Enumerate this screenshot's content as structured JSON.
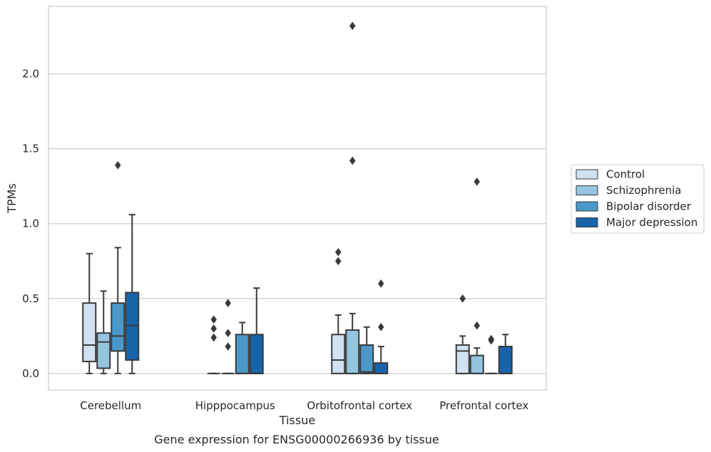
{
  "caption": "Gene expression for ENSG00000266936 by tissue",
  "chart_data": {
    "type": "box",
    "title": "",
    "xlabel": "Tissue",
    "ylabel": "TPMs",
    "ylim": [
      -0.11,
      2.45
    ],
    "yticks": [
      0.0,
      0.5,
      1.0,
      1.5,
      2.0
    ],
    "ytick_labels": [
      "0.0",
      "0.5",
      "1.0",
      "1.5",
      "2.0"
    ],
    "grid": "horizontal",
    "legend_position": "right",
    "categories": [
      "Cerebellum",
      "Hipppocampus",
      "Orbitofrontal cortex",
      "Prefrontal cortex"
    ],
    "series": [
      {
        "name": "Control",
        "color": "#d0e1f2",
        "boxes": [
          {
            "whislo": 0.0,
            "q1": 0.08,
            "med": 0.19,
            "q3": 0.47,
            "whishi": 0.8,
            "fliers": []
          },
          {
            "whislo": 0.0,
            "q1": 0.0,
            "med": 0.0,
            "q3": 0.0,
            "whishi": 0.0,
            "fliers": [
              0.24,
              0.3,
              0.36
            ]
          },
          {
            "whislo": 0.0,
            "q1": 0.0,
            "med": 0.09,
            "q3": 0.26,
            "whishi": 0.39,
            "fliers": [
              0.75,
              0.81
            ]
          },
          {
            "whislo": 0.0,
            "q1": 0.0,
            "med": 0.15,
            "q3": 0.19,
            "whishi": 0.25,
            "fliers": [
              0.5
            ]
          }
        ]
      },
      {
        "name": "Schizophrenia",
        "color": "#94c4df",
        "boxes": [
          {
            "whislo": 0.0,
            "q1": 0.035,
            "med": 0.21,
            "q3": 0.27,
            "whishi": 0.55,
            "fliers": []
          },
          {
            "whislo": 0.0,
            "q1": 0.0,
            "med": 0.0,
            "q3": 0.0,
            "whishi": 0.0,
            "fliers": [
              0.18,
              0.27,
              0.47
            ]
          },
          {
            "whislo": 0.0,
            "q1": 0.0,
            "med": 0.0,
            "q3": 0.29,
            "whishi": 0.4,
            "fliers": [
              1.42,
              2.32
            ]
          },
          {
            "whislo": 0.0,
            "q1": 0.0,
            "med": 0.0,
            "q3": 0.12,
            "whishi": 0.17,
            "fliers": [
              0.32,
              1.28
            ]
          }
        ]
      },
      {
        "name": "Bipolar disorder",
        "color": "#4a98c9",
        "boxes": [
          {
            "whislo": 0.0,
            "q1": 0.15,
            "med": 0.25,
            "q3": 0.47,
            "whishi": 0.84,
            "fliers": [
              1.39
            ]
          },
          {
            "whislo": 0.0,
            "q1": 0.0,
            "med": 0.0,
            "q3": 0.26,
            "whishi": 0.34,
            "fliers": []
          },
          {
            "whislo": 0.0,
            "q1": 0.0,
            "med": 0.01,
            "q3": 0.19,
            "whishi": 0.31,
            "fliers": []
          },
          {
            "whislo": 0.0,
            "q1": 0.0,
            "med": 0.0,
            "q3": 0.0,
            "whishi": 0.0,
            "fliers": [
              0.22,
              0.23
            ]
          }
        ]
      },
      {
        "name": "Major depression",
        "color": "#1764ab",
        "boxes": [
          {
            "whislo": 0.0,
            "q1": 0.09,
            "med": 0.32,
            "q3": 0.54,
            "whishi": 1.06,
            "fliers": []
          },
          {
            "whislo": 0.0,
            "q1": 0.0,
            "med": 0.0,
            "q3": 0.26,
            "whishi": 0.57,
            "fliers": []
          },
          {
            "whislo": 0.0,
            "q1": 0.0,
            "med": 0.0,
            "q3": 0.07,
            "whishi": 0.18,
            "fliers": [
              0.31,
              0.6
            ]
          },
          {
            "whislo": 0.0,
            "q1": 0.0,
            "med": 0.0,
            "q3": 0.18,
            "whishi": 0.26,
            "fliers": []
          }
        ]
      }
    ]
  }
}
